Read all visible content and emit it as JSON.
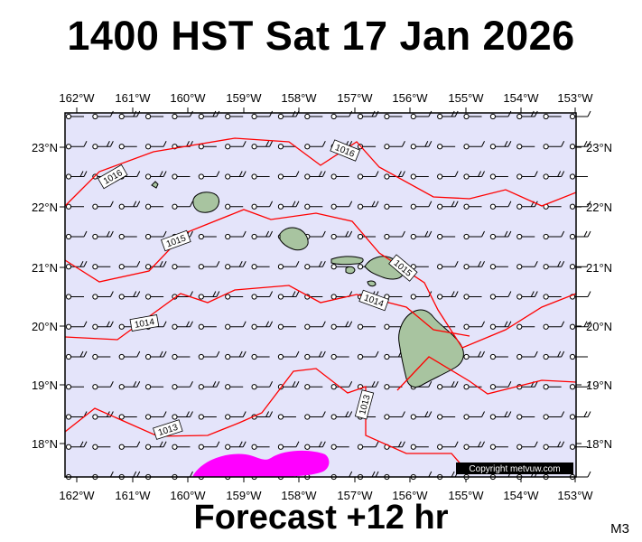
{
  "title": "1400 HST Sat 17 Jan 2026",
  "footer": "Forecast +12 hr",
  "model_label": "M3",
  "copyright": "Copyright metvuw.com",
  "colors": {
    "sea": "#e4e4fa",
    "isobar": "#ff0000",
    "land": "#a8c4a0",
    "rain": "#ff00ff",
    "frame": "#000000"
  },
  "map": {
    "lon_labels": [
      "162°W",
      "161°W",
      "160°W",
      "159°W",
      "158°W",
      "157°W",
      "156°W",
      "155°W",
      "154°W",
      "153°W"
    ],
    "lat_labels": [
      "23°N",
      "22°N",
      "21°N",
      "20°N",
      "19°N",
      "18°N"
    ],
    "isobar_labels": [
      "1016",
      "1016",
      "1015",
      "1015",
      "1014",
      "1014",
      "1013",
      "1013"
    ],
    "wind_symbol": "wind-barb",
    "calm_symbol": "circle"
  }
}
